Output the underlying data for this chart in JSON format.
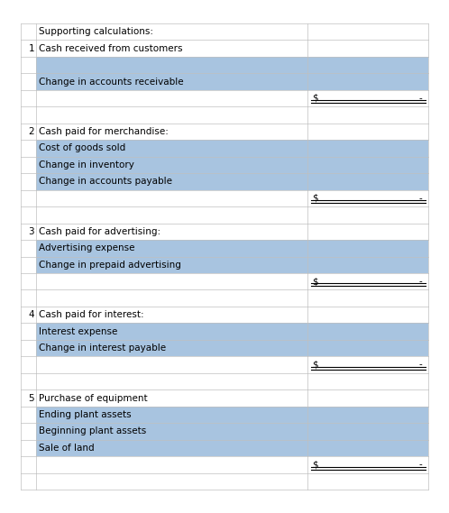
{
  "blue_fill": "#a8c4e0",
  "grid_color": "#c0c0c0",
  "text_color": "#000000",
  "background": "#ffffff",
  "figw": 4.98,
  "figh": 5.69,
  "dpi": 100,
  "rows": [
    {
      "num": "",
      "label": "Supporting calculations:",
      "blue": false,
      "dollar": false
    },
    {
      "num": "1",
      "label": "Cash received from customers",
      "blue": false,
      "dollar": false
    },
    {
      "num": "",
      "label": "",
      "blue": true,
      "dollar": false
    },
    {
      "num": "",
      "label": "Change in accounts receivable",
      "blue": true,
      "dollar": false
    },
    {
      "num": "",
      "label": "",
      "blue": false,
      "dollar": true
    },
    {
      "num": "",
      "label": "",
      "blue": false,
      "dollar": false
    },
    {
      "num": "2",
      "label": "Cash paid for merchandise:",
      "blue": false,
      "dollar": false
    },
    {
      "num": "",
      "label": "Cost of goods sold",
      "blue": true,
      "dollar": false
    },
    {
      "num": "",
      "label": "Change in inventory",
      "blue": true,
      "dollar": false
    },
    {
      "num": "",
      "label": "Change in accounts payable",
      "blue": true,
      "dollar": false
    },
    {
      "num": "",
      "label": "",
      "blue": false,
      "dollar": true
    },
    {
      "num": "",
      "label": "",
      "blue": false,
      "dollar": false
    },
    {
      "num": "3",
      "label": "Cash paid for advertising:",
      "blue": false,
      "dollar": false
    },
    {
      "num": "",
      "label": "Advertising expense",
      "blue": true,
      "dollar": false
    },
    {
      "num": "",
      "label": "Change in prepaid advertising",
      "blue": true,
      "dollar": false
    },
    {
      "num": "",
      "label": "",
      "blue": false,
      "dollar": true
    },
    {
      "num": "",
      "label": "",
      "blue": false,
      "dollar": false
    },
    {
      "num": "4",
      "label": "Cash paid for interest:",
      "blue": false,
      "dollar": false
    },
    {
      "num": "",
      "label": "Interest expense",
      "blue": true,
      "dollar": false
    },
    {
      "num": "",
      "label": "Change in interest payable",
      "blue": true,
      "dollar": false
    },
    {
      "num": "",
      "label": "",
      "blue": false,
      "dollar": true
    },
    {
      "num": "",
      "label": "",
      "blue": false,
      "dollar": false
    },
    {
      "num": "5",
      "label": "Purchase of equipment",
      "blue": false,
      "dollar": false
    },
    {
      "num": "",
      "label": "Ending plant assets",
      "blue": true,
      "dollar": false
    },
    {
      "num": "",
      "label": "Beginning plant assets",
      "blue": true,
      "dollar": false
    },
    {
      "num": "",
      "label": "Sale of land",
      "blue": true,
      "dollar": false
    },
    {
      "num": "",
      "label": "",
      "blue": false,
      "dollar": true
    },
    {
      "num": "",
      "label": "",
      "blue": false,
      "dollar": false
    }
  ]
}
